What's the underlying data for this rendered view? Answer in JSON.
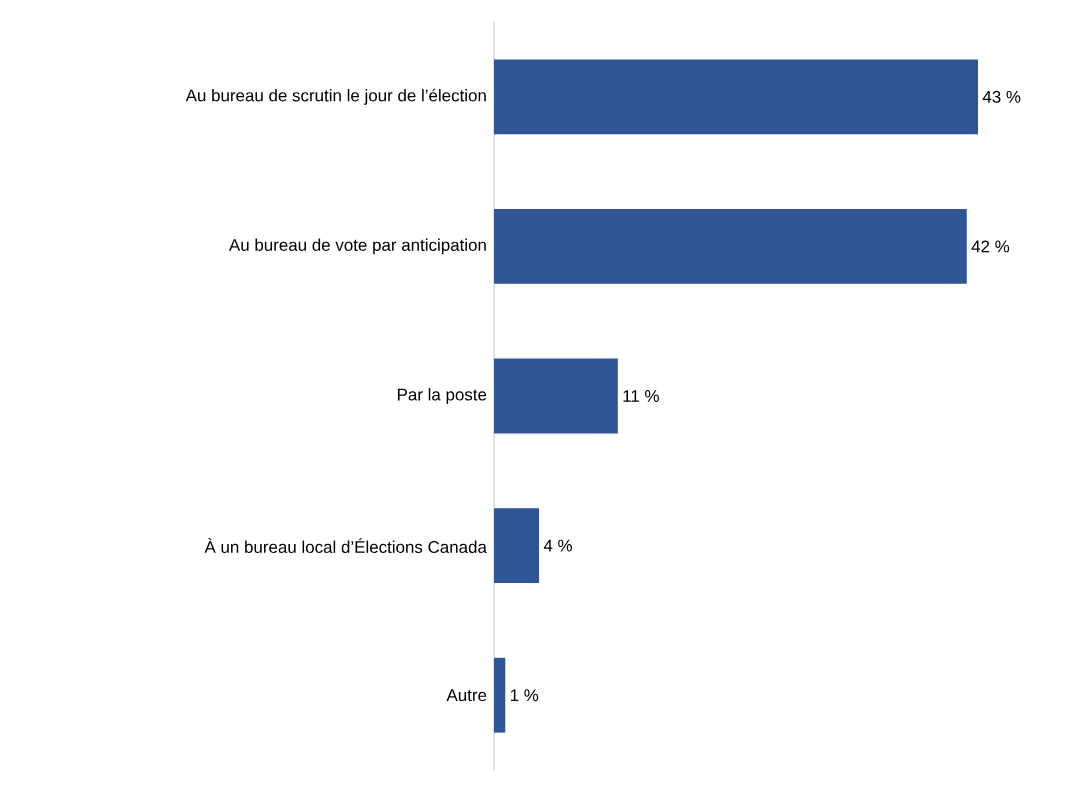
{
  "chart_data": {
    "type": "bar",
    "orientation": "horizontal",
    "categories": [
      "Au bureau de scrutin le jour de l’élection",
      "Au bureau de vote par anticipation",
      "Par la poste",
      "À un bureau local d’Élections Canada",
      "Autre"
    ],
    "values": [
      43,
      42,
      11,
      4,
      1
    ],
    "value_labels": [
      "43 %",
      "42 %",
      "11 %",
      "4 %",
      "1 %"
    ],
    "color": "#2f5597"
  }
}
